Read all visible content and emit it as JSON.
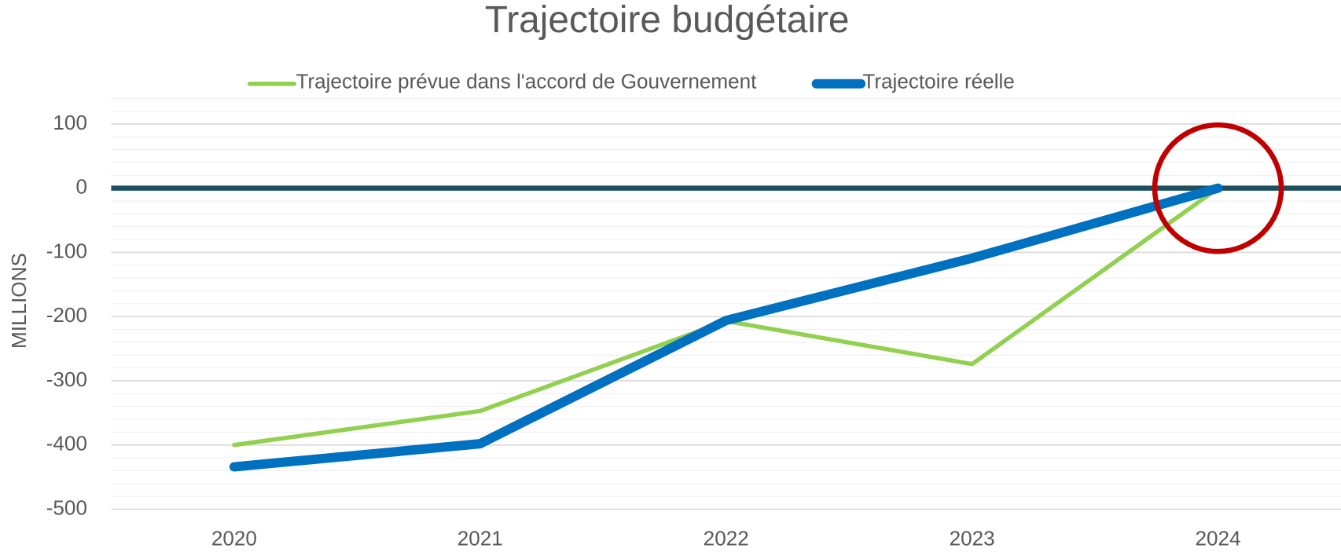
{
  "chart_data": {
    "type": "line",
    "title": "Trajectoire budgétaire",
    "y_label": "MILLIONS",
    "categories": [
      "2020",
      "2021",
      "2022",
      "2023",
      "2024"
    ],
    "series": [
      {
        "name": "Trajectoire prévue dans l'accord de Gouvernement",
        "color": "#92d050",
        "values": [
          -400,
          -347,
          -207,
          -274,
          0
        ]
      },
      {
        "name": "Trajectoire réelle",
        "color": "#0070c0",
        "values": [
          -434,
          -398,
          -206,
          -109,
          0
        ]
      }
    ],
    "ylim": [
      -500,
      140
    ],
    "yticks": [
      100,
      0,
      -100,
      -200,
      -300,
      -400,
      -500
    ],
    "grid": true,
    "minor_grid": 20,
    "legend": "top"
  }
}
